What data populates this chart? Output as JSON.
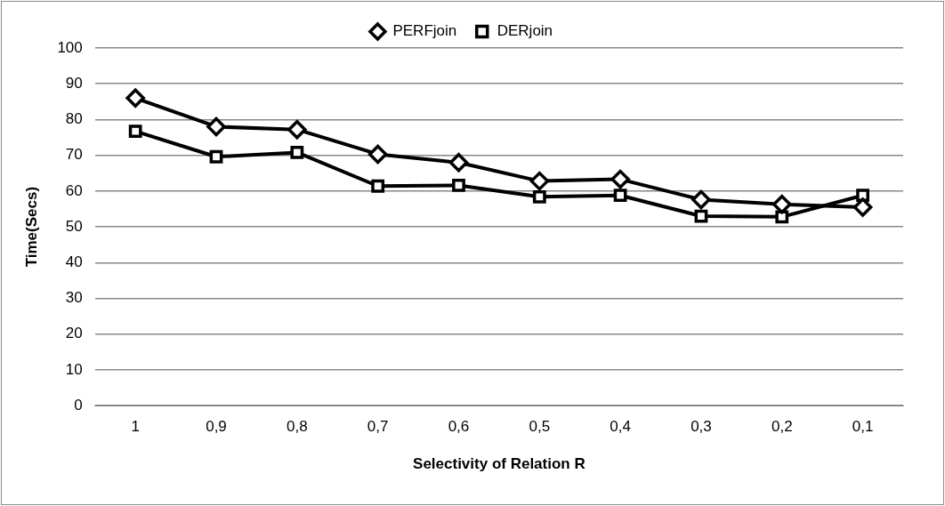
{
  "chart_data": {
    "type": "line",
    "xlabel": "Selectivity of Relation R",
    "ylabel": "Time(Secs)",
    "categories": [
      "1",
      "0,9",
      "0,8",
      "0,7",
      "0,6",
      "0,5",
      "0,4",
      "0,3",
      "0,2",
      "0,1"
    ],
    "series": [
      {
        "name": "PERFjoin",
        "color": "#000000",
        "marker": "diamond",
        "values": [
          86,
          78,
          77.2,
          70.3,
          68,
          62.8,
          63.3,
          57.6,
          56.3,
          55.5
        ]
      },
      {
        "name": "DERjoin",
        "color": "#000000",
        "marker": "square",
        "values": [
          76.7,
          69.6,
          70.8,
          61.4,
          61.6,
          58.4,
          58.8,
          53,
          52.8,
          58.8
        ]
      }
    ],
    "ylim": [
      0,
      100
    ],
    "yticks": [
      0,
      10,
      20,
      30,
      40,
      50,
      60,
      70,
      80,
      90,
      100
    ],
    "grid": "y",
    "legend": "top",
    "line_style": "solid"
  }
}
